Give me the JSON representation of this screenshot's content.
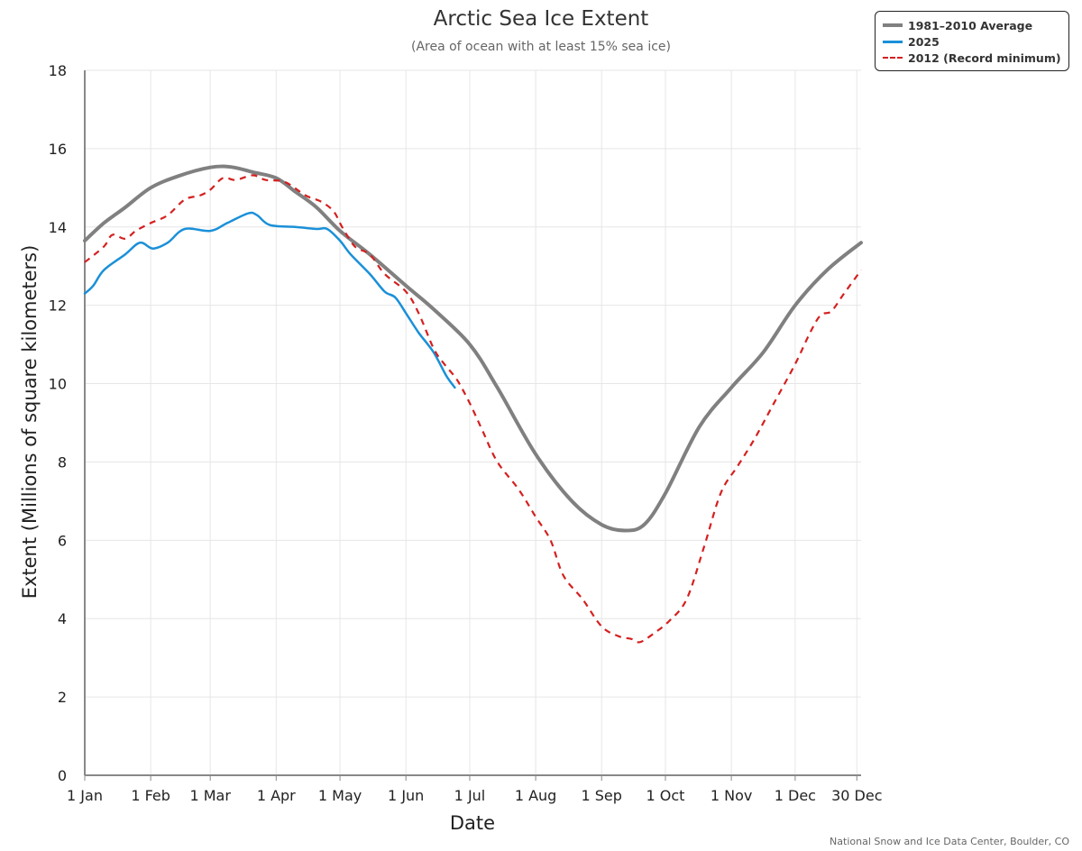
{
  "chart_data": {
    "type": "line",
    "title": "Arctic Sea Ice Extent",
    "subtitle": "(Area of ocean with at least 15% sea ice)",
    "xlabel": "Date",
    "ylabel": "Extent (Millions of square kilometers)",
    "ylim": [
      0,
      18
    ],
    "yticks": [
      0,
      2,
      4,
      6,
      8,
      10,
      12,
      14,
      16,
      18
    ],
    "xticks": [
      {
        "day": 1,
        "label": "1 Jan"
      },
      {
        "day": 32,
        "label": "1 Feb"
      },
      {
        "day": 60,
        "label": "1 Mar"
      },
      {
        "day": 91,
        "label": "1 Apr"
      },
      {
        "day": 121,
        "label": "1 May"
      },
      {
        "day": 152,
        "label": "1 Jun"
      },
      {
        "day": 182,
        "label": "1 Jul"
      },
      {
        "day": 213,
        "label": "1 Aug"
      },
      {
        "day": 244,
        "label": "1 Sep"
      },
      {
        "day": 274,
        "label": "1 Oct"
      },
      {
        "day": 305,
        "label": "1 Nov"
      },
      {
        "day": 335,
        "label": "1 Dec"
      },
      {
        "day": 364,
        "label": "30 Dec"
      }
    ],
    "xlim": [
      1,
      366
    ],
    "grid": true,
    "legend_position": "top-right",
    "series": [
      {
        "name": "1981–2010 Average",
        "color": "#808080",
        "style": "solid",
        "points": [
          [
            1,
            13.65
          ],
          [
            10,
            14.1
          ],
          [
            20,
            14.5
          ],
          [
            32,
            15.0
          ],
          [
            45,
            15.3
          ],
          [
            60,
            15.52
          ],
          [
            70,
            15.53
          ],
          [
            80,
            15.4
          ],
          [
            91,
            15.25
          ],
          [
            100,
            14.9
          ],
          [
            110,
            14.5
          ],
          [
            121,
            13.9
          ],
          [
            135,
            13.3
          ],
          [
            152,
            12.5
          ],
          [
            165,
            11.9
          ],
          [
            182,
            11.0
          ],
          [
            195,
            9.9
          ],
          [
            213,
            8.2
          ],
          [
            230,
            7.0
          ],
          [
            244,
            6.4
          ],
          [
            255,
            6.25
          ],
          [
            264,
            6.4
          ],
          [
            274,
            7.2
          ],
          [
            290,
            8.9
          ],
          [
            305,
            9.9
          ],
          [
            320,
            10.8
          ],
          [
            335,
            12.0
          ],
          [
            350,
            12.9
          ],
          [
            366,
            13.6
          ]
        ]
      },
      {
        "name": "2025",
        "color": "#1a90d8",
        "style": "solid",
        "points": [
          [
            1,
            12.3
          ],
          [
            5,
            12.5
          ],
          [
            10,
            12.9
          ],
          [
            20,
            13.3
          ],
          [
            27,
            13.6
          ],
          [
            33,
            13.45
          ],
          [
            40,
            13.6
          ],
          [
            48,
            13.95
          ],
          [
            60,
            13.9
          ],
          [
            68,
            14.1
          ],
          [
            78,
            14.35
          ],
          [
            82,
            14.3
          ],
          [
            88,
            14.05
          ],
          [
            100,
            14.0
          ],
          [
            110,
            13.95
          ],
          [
            115,
            13.95
          ],
          [
            121,
            13.65
          ],
          [
            126,
            13.3
          ],
          [
            135,
            12.8
          ],
          [
            142,
            12.35
          ],
          [
            147,
            12.2
          ],
          [
            152,
            11.8
          ],
          [
            158,
            11.3
          ],
          [
            165,
            10.8
          ],
          [
            171,
            10.2
          ],
          [
            175,
            9.9
          ]
        ]
      },
      {
        "name": "2012 (Record minimum)",
        "color": "#d42020",
        "style": "dashed",
        "points": [
          [
            1,
            13.1
          ],
          [
            10,
            13.5
          ],
          [
            14,
            13.8
          ],
          [
            20,
            13.7
          ],
          [
            25,
            13.9
          ],
          [
            32,
            14.1
          ],
          [
            40,
            14.3
          ],
          [
            48,
            14.7
          ],
          [
            55,
            14.8
          ],
          [
            60,
            14.95
          ],
          [
            66,
            15.25
          ],
          [
            72,
            15.2
          ],
          [
            80,
            15.32
          ],
          [
            86,
            15.2
          ],
          [
            95,
            15.15
          ],
          [
            105,
            14.8
          ],
          [
            112,
            14.65
          ],
          [
            118,
            14.4
          ],
          [
            122,
            14.0
          ],
          [
            128,
            13.5
          ],
          [
            135,
            13.3
          ],
          [
            142,
            12.8
          ],
          [
            152,
            12.35
          ],
          [
            158,
            11.8
          ],
          [
            165,
            10.9
          ],
          [
            170,
            10.5
          ],
          [
            176,
            10.1
          ],
          [
            182,
            9.5
          ],
          [
            188,
            8.8
          ],
          [
            195,
            8.0
          ],
          [
            205,
            7.3
          ],
          [
            213,
            6.6
          ],
          [
            220,
            6.0
          ],
          [
            226,
            5.1
          ],
          [
            235,
            4.5
          ],
          [
            244,
            3.8
          ],
          [
            252,
            3.55
          ],
          [
            258,
            3.48
          ],
          [
            262,
            3.4
          ],
          [
            268,
            3.6
          ],
          [
            276,
            3.95
          ],
          [
            284,
            4.5
          ],
          [
            292,
            5.8
          ],
          [
            300,
            7.2
          ],
          [
            308,
            7.9
          ],
          [
            316,
            8.6
          ],
          [
            325,
            9.5
          ],
          [
            335,
            10.5
          ],
          [
            342,
            11.3
          ],
          [
            347,
            11.75
          ],
          [
            352,
            11.85
          ],
          [
            358,
            12.3
          ],
          [
            366,
            12.9
          ]
        ]
      }
    ]
  },
  "credit": "National Snow and Ice Data Center, Boulder, CO"
}
